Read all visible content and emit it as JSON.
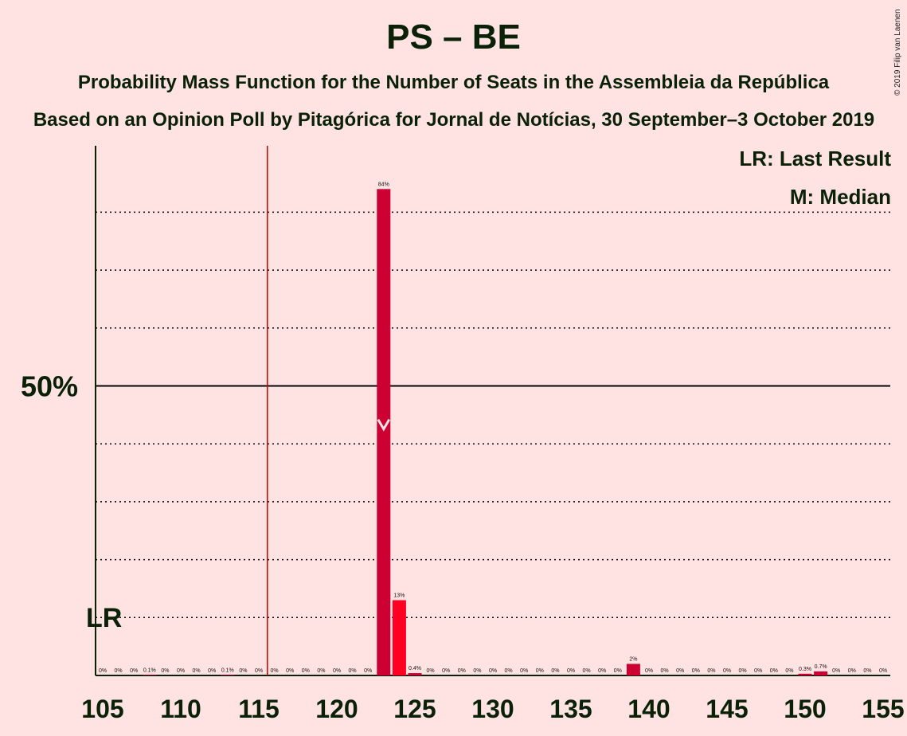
{
  "title": "PS – BE",
  "subtitle": "Probability Mass Function for the Number of Seats in the Assembleia da República",
  "subtitle2": "Based on an Opinion Poll by Pitagórica for Jornal de Notícias, 30 September–3 October 2019",
  "copyright": "© 2019 Filip van Laenen",
  "legend": {
    "lr": "LR: Last Result",
    "median": "M: Median"
  },
  "colors": {
    "background": "#FFE3E3",
    "bar_primary": "#CC0033",
    "bar_highlight": "#FF0022",
    "last_result_line": "#CC0000",
    "axis": "#0A2108"
  },
  "chart_data": {
    "type": "bar",
    "x": [
      105,
      106,
      107,
      108,
      109,
      110,
      111,
      112,
      113,
      114,
      115,
      116,
      117,
      118,
      119,
      120,
      121,
      122,
      123,
      124,
      125,
      126,
      127,
      128,
      129,
      130,
      131,
      132,
      133,
      134,
      135,
      136,
      137,
      138,
      139,
      140,
      141,
      142,
      143,
      144,
      145,
      146,
      147,
      148,
      149,
      150,
      151,
      152,
      153,
      154,
      155
    ],
    "values": [
      0,
      0,
      0,
      0.1,
      0,
      0,
      0,
      0,
      0.1,
      0,
      0,
      0,
      0,
      0,
      0,
      0,
      0,
      0,
      84,
      13,
      0.4,
      0,
      0,
      0,
      0,
      0,
      0,
      0,
      0,
      0,
      0,
      0,
      0,
      0,
      2,
      0,
      0,
      0,
      0,
      0,
      0,
      0,
      0,
      0,
      0,
      0.3,
      0.7,
      0,
      0,
      0,
      0
    ],
    "labels": [
      "0%",
      "0%",
      "0%",
      "0.1%",
      "0%",
      "0%",
      "0%",
      "0%",
      "0.1%",
      "0%",
      "0%",
      "0%",
      "0%",
      "0%",
      "0%",
      "0%",
      "0%",
      "0%",
      "84%",
      "13%",
      "0.4%",
      "0%",
      "0%",
      "0%",
      "0%",
      "0%",
      "0%",
      "0%",
      "0%",
      "0%",
      "0%",
      "0%",
      "0%",
      "0%",
      "2%",
      "0%",
      "0%",
      "0%",
      "0%",
      "0%",
      "0%",
      "0%",
      "0%",
      "0%",
      "0%",
      "0.3%",
      "0.7%",
      "0%",
      "0%",
      "0%",
      "0%"
    ],
    "x_ticks": [
      "105",
      "110",
      "115",
      "120",
      "125",
      "130",
      "135",
      "140",
      "145",
      "150",
      "155"
    ],
    "y_ticks": [
      "50%"
    ],
    "ylim": [
      0,
      91.5
    ],
    "xlim": [
      105,
      155
    ],
    "last_result": 116,
    "last_result_label": "LR",
    "median": 123,
    "median_value": 42,
    "highlight_seat": 124,
    "gridlines_dotted": [
      10,
      20,
      30,
      40,
      60,
      70,
      80
    ],
    "gridline_solid": 50,
    "legend_position": "top-right"
  }
}
